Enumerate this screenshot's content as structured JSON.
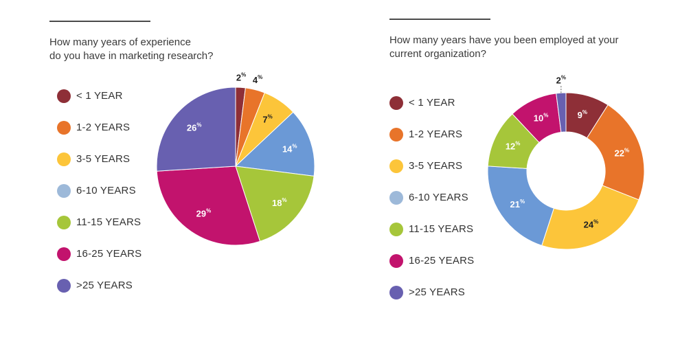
{
  "colors": {
    "lt1": "#8e2f37",
    "y1_2": "#e8742a",
    "y3_5": "#fcc53a",
    "y6_10": "#6b99d6",
    "y11_15": "#a6c63a",
    "y16_25": "#c2136d",
    "gt25": "#6860b0",
    "legend_6_10": "#9db9d9"
  },
  "chart_data": [
    {
      "type": "pie",
      "title": "How many years of experience do you have in marketing research?",
      "title_lines": [
        "How many years of experience",
        "do you have in marketing research?"
      ],
      "legend": [
        "< 1 YEAR",
        "1-2 YEARS",
        "3-5 YEARS",
        "6-10 YEARS",
        "11-15 YEARS",
        "16-25 YEARS",
        ">25 YEARS"
      ],
      "categories": [
        "< 1 YEAR",
        "1-2 YEARS",
        "3-5 YEARS",
        "6-10 YEARS",
        "11-15 YEARS",
        "16-25 YEARS",
        ">25 YEARS"
      ],
      "values": [
        2,
        4,
        7,
        14,
        18,
        29,
        26
      ],
      "labels": [
        "2",
        "4",
        "7",
        "14",
        "18",
        "29",
        "26"
      ],
      "unit": "%"
    },
    {
      "type": "pie",
      "variant": "donut",
      "title": "How many years have you been employed at your current organization?",
      "title_lines": [
        "How many years have you been employed at your",
        "current organization?"
      ],
      "legend": [
        "< 1 YEAR",
        "1-2 YEARS",
        "3-5 YEARS",
        "6-10 YEARS",
        "11-15 YEARS",
        "16-25 YEARS",
        ">25 YEARS"
      ],
      "categories": [
        "< 1 YEAR",
        "1-2 YEARS",
        "3-5 YEARS",
        "6-10 YEARS",
        "11-15 YEARS",
        "16-25 YEARS",
        ">25 YEARS"
      ],
      "values": [
        9,
        22,
        24,
        21,
        12,
        10,
        2
      ],
      "labels": [
        "9",
        "22",
        "24",
        "21",
        "12",
        "10",
        "2"
      ],
      "unit": "%"
    }
  ]
}
